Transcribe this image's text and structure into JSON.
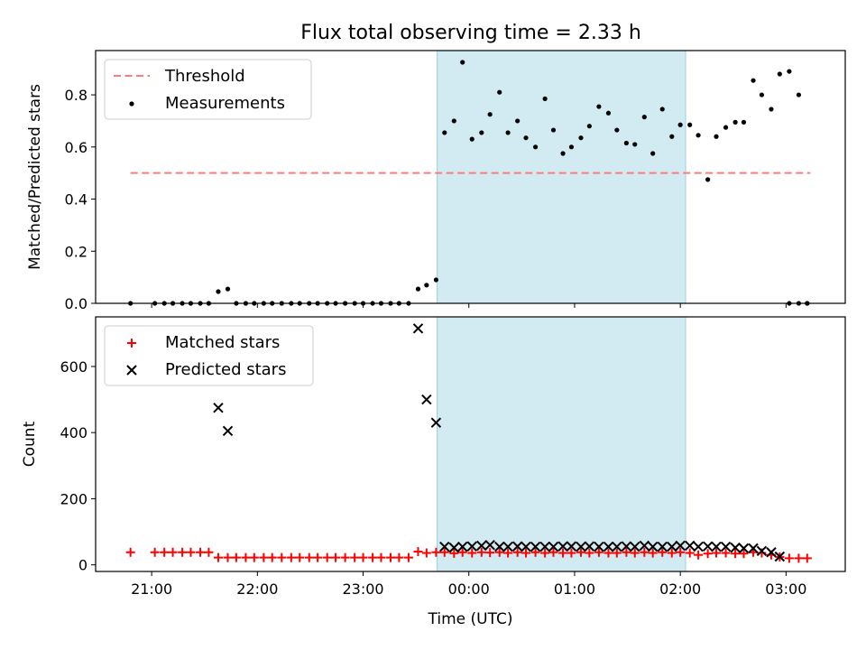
{
  "title": "Flux total observing time = 2.33 h",
  "x_ticks": [
    "21:00",
    "22:00",
    "23:00",
    "00:00",
    "01:00",
    "02:00",
    "03:00"
  ],
  "x_tick_hours": [
    21,
    22,
    23,
    24,
    25,
    26,
    27
  ],
  "x_label": "Time (UTC)",
  "chart_data": [
    {
      "type": "scatter",
      "title": "Flux total observing time = 2.33 h",
      "ylabel": "Matched/Predicted stars",
      "xlabel": "",
      "xlim": [
        20.47,
        27.56
      ],
      "ylim": [
        0,
        0.97
      ],
      "yticks": [
        0.0,
        0.2,
        0.4,
        0.6,
        0.8
      ],
      "ytick_labels": [
        "0.0",
        "0.2",
        "0.4",
        "0.6",
        "0.8"
      ],
      "shaded_span": {
        "x0": 23.7,
        "x1": 26.05,
        "color": "#add8e6"
      },
      "legend_position": "upper left",
      "series": [
        {
          "name": "Threshold",
          "kind": "dashed-line",
          "color": "#ff7b7b",
          "x": [
            20.8,
            27.23
          ],
          "y": [
            0.5,
            0.5
          ]
        },
        {
          "name": "Measurements",
          "kind": "dot",
          "color": "#000000",
          "x": [
            20.8,
            21.03,
            21.12,
            21.2,
            21.29,
            21.37,
            21.46,
            21.54,
            21.63,
            21.72,
            21.8,
            21.89,
            21.97,
            22.06,
            22.14,
            22.23,
            22.32,
            22.4,
            22.49,
            22.57,
            22.66,
            22.74,
            22.83,
            22.92,
            23.0,
            23.09,
            23.17,
            23.26,
            23.34,
            23.43,
            23.52,
            23.6,
            23.69,
            23.77,
            23.86,
            23.94,
            24.03,
            24.12,
            24.2,
            24.29,
            24.37,
            24.46,
            24.54,
            24.63,
            24.72,
            24.8,
            24.89,
            24.97,
            25.06,
            25.14,
            25.23,
            25.32,
            25.4,
            25.49,
            25.57,
            25.66,
            25.74,
            25.83,
            25.92,
            26.0,
            26.09,
            26.17,
            26.26,
            26.34,
            26.43,
            26.52,
            26.6,
            26.69,
            26.77,
            26.86,
            26.94,
            27.03,
            27.12,
            27.2
          ],
          "y": [
            0.0,
            0.0,
            0.0,
            0.0,
            0.0,
            0.0,
            0.0,
            0.0,
            0.045,
            0.055,
            0.0,
            0.0,
            0.0,
            0.0,
            0.0,
            0.0,
            0.0,
            0.0,
            0.0,
            0.0,
            0.0,
            0.0,
            0.0,
            0.0,
            0.0,
            0.0,
            0.0,
            0.0,
            0.0,
            0.0,
            0.055,
            0.07,
            0.09,
            0.655,
            0.7,
            0.925,
            0.63,
            0.655,
            0.725,
            0.81,
            0.655,
            0.7,
            0.635,
            0.6,
            0.785,
            0.665,
            0.575,
            0.6,
            0.635,
            0.68,
            0.755,
            0.73,
            0.665,
            0.615,
            0.61,
            0.715,
            0.575,
            0.745,
            0.64,
            0.685,
            0.685,
            0.645,
            0.475,
            0.64,
            0.675,
            0.695,
            0.695,
            0.855,
            0.8,
            0.745,
            0.88,
            0.89,
            0.8,
            0.0
          ]
        }
      ],
      "extra_points": {
        "x": [
          27.03,
          27.12,
          27.2
        ],
        "y": [
          0.0,
          0.0,
          0.0
        ]
      }
    },
    {
      "type": "scatter",
      "title": "",
      "ylabel": "Count",
      "xlabel": "Time (UTC)",
      "xlim": [
        20.47,
        27.56
      ],
      "ylim": [
        -20,
        750
      ],
      "yticks": [
        0,
        200,
        400,
        600
      ],
      "ytick_labels": [
        "0",
        "200",
        "400",
        "600"
      ],
      "shaded_span": {
        "x0": 23.7,
        "x1": 26.05,
        "color": "#add8e6"
      },
      "legend_position": "upper left",
      "series": [
        {
          "name": "Matched stars",
          "kind": "plus",
          "color": "#ff0000",
          "x": [
            20.8,
            21.03,
            21.12,
            21.2,
            21.29,
            21.37,
            21.46,
            21.54,
            21.63,
            21.72,
            21.8,
            21.89,
            21.97,
            22.06,
            22.14,
            22.23,
            22.32,
            22.4,
            22.49,
            22.57,
            22.66,
            22.74,
            22.83,
            22.92,
            23.0,
            23.09,
            23.17,
            23.26,
            23.34,
            23.43,
            23.52,
            23.6,
            23.69,
            23.77,
            23.86,
            23.94,
            24.03,
            24.12,
            24.2,
            24.29,
            24.37,
            24.46,
            24.54,
            24.63,
            24.72,
            24.8,
            24.89,
            24.97,
            25.06,
            25.14,
            25.23,
            25.32,
            25.4,
            25.49,
            25.57,
            25.66,
            25.74,
            25.83,
            25.92,
            26.0,
            26.09,
            26.17,
            26.26,
            26.34,
            26.43,
            26.52,
            26.6,
            26.69,
            26.77,
            26.86,
            26.94,
            27.03,
            27.12,
            27.2
          ],
          "y": [
            38,
            38,
            38,
            38,
            38,
            38,
            38,
            38,
            22,
            22,
            22,
            22,
            22,
            22,
            22,
            22,
            22,
            22,
            22,
            22,
            22,
            22,
            22,
            22,
            22,
            22,
            22,
            22,
            22,
            22,
            40,
            36,
            38,
            38,
            35,
            38,
            36,
            38,
            37,
            38,
            36,
            38,
            36,
            38,
            36,
            38,
            36,
            36,
            38,
            36,
            38,
            36,
            36,
            38,
            36,
            38,
            36,
            38,
            36,
            38,
            36,
            30,
            34,
            36,
            36,
            34,
            34,
            38,
            36,
            30,
            24,
            20,
            20,
            20
          ]
        },
        {
          "name": "Predicted stars",
          "kind": "x",
          "color": "#000000",
          "x": [
            21.63,
            21.72,
            23.52,
            23.6,
            23.69,
            23.77,
            23.86,
            23.94,
            24.03,
            24.12,
            24.2,
            24.29,
            24.37,
            24.46,
            24.54,
            24.63,
            24.72,
            24.8,
            24.89,
            24.97,
            25.06,
            25.14,
            25.23,
            25.32,
            25.4,
            25.49,
            25.57,
            25.66,
            25.74,
            25.83,
            25.92,
            26.0,
            26.09,
            26.17,
            26.26,
            26.34,
            26.43,
            26.52,
            26.6,
            26.69,
            26.77,
            26.86,
            26.94
          ],
          "y": [
            475,
            405,
            715,
            500,
            430,
            55,
            52,
            55,
            56,
            58,
            60,
            55,
            55,
            56,
            55,
            55,
            55,
            55,
            56,
            56,
            55,
            56,
            55,
            55,
            55,
            56,
            55,
            58,
            55,
            55,
            55,
            58,
            58,
            55,
            56,
            55,
            55,
            52,
            50,
            50,
            42,
            38,
            25
          ]
        }
      ]
    }
  ]
}
